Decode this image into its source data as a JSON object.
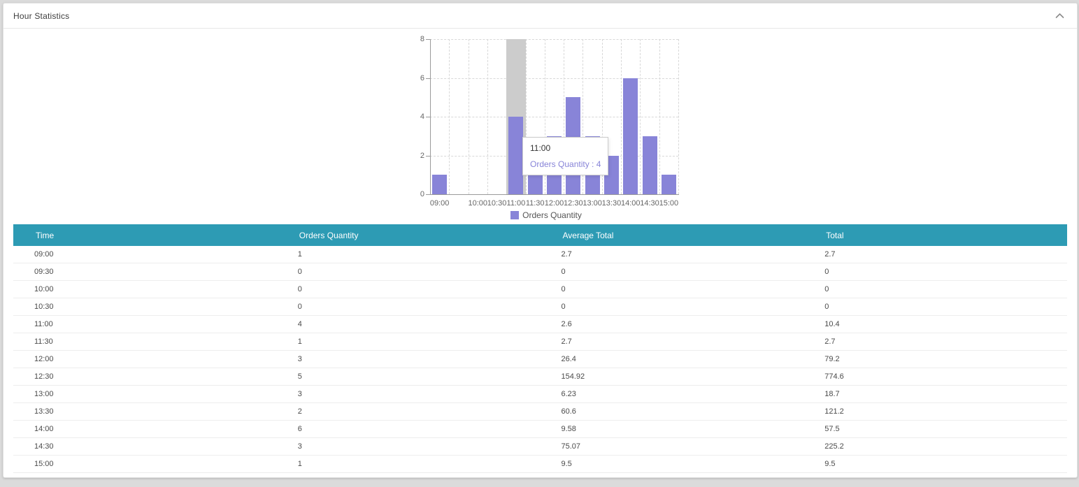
{
  "panel": {
    "title": "Hour Statistics",
    "collapse_icon": "chevron-up"
  },
  "chart_data": {
    "type": "bar",
    "title": "",
    "xlabel": "",
    "ylabel": "",
    "categories": [
      "09:00",
      "09:30",
      "10:00",
      "10:30",
      "11:00",
      "11:30",
      "12:00",
      "12:30",
      "13:00",
      "13:30",
      "14:00",
      "14:30",
      "15:00"
    ],
    "x_tick_labels": [
      "09:00",
      "",
      "10:00",
      "10:30",
      "11:00",
      "11:30",
      "12:00",
      "12:30",
      "13:00",
      "13:30",
      "14:00",
      "14:30",
      "15:00"
    ],
    "series": [
      {
        "name": "Orders Quantity",
        "values": [
          1,
          0,
          0,
          0,
          4,
          1,
          3,
          5,
          3,
          2,
          6,
          3,
          1
        ],
        "color": "#8884d8"
      }
    ],
    "ylim": [
      0,
      8
    ],
    "yticks": [
      0,
      2,
      4,
      6,
      8
    ],
    "grid": true,
    "legend_position": "bottom",
    "legend_label": "Orders Quantity",
    "hover": {
      "category": "11:00",
      "category_index": 4,
      "cursor_color": "#cccccc",
      "tooltip": {
        "title": "11:00",
        "line": "Orders Quantity : 4",
        "value_color": "#8884d8"
      }
    }
  },
  "table": {
    "header_bg": "#2d9bb4",
    "headers": [
      "Time",
      "Orders Quantity",
      "Average Total",
      "Total"
    ],
    "rows": [
      [
        "09:00",
        "1",
        "2.7",
        "2.7"
      ],
      [
        "09:30",
        "0",
        "0",
        "0"
      ],
      [
        "10:00",
        "0",
        "0",
        "0"
      ],
      [
        "10:30",
        "0",
        "0",
        "0"
      ],
      [
        "11:00",
        "4",
        "2.6",
        "10.4"
      ],
      [
        "11:30",
        "1",
        "2.7",
        "2.7"
      ],
      [
        "12:00",
        "3",
        "26.4",
        "79.2"
      ],
      [
        "12:30",
        "5",
        "154.92",
        "774.6"
      ],
      [
        "13:00",
        "3",
        "6.23",
        "18.7"
      ],
      [
        "13:30",
        "2",
        "60.6",
        "121.2"
      ],
      [
        "14:00",
        "6",
        "9.58",
        "57.5"
      ],
      [
        "14:30",
        "3",
        "75.07",
        "225.2"
      ],
      [
        "15:00",
        "1",
        "9.5",
        "9.5"
      ]
    ]
  }
}
